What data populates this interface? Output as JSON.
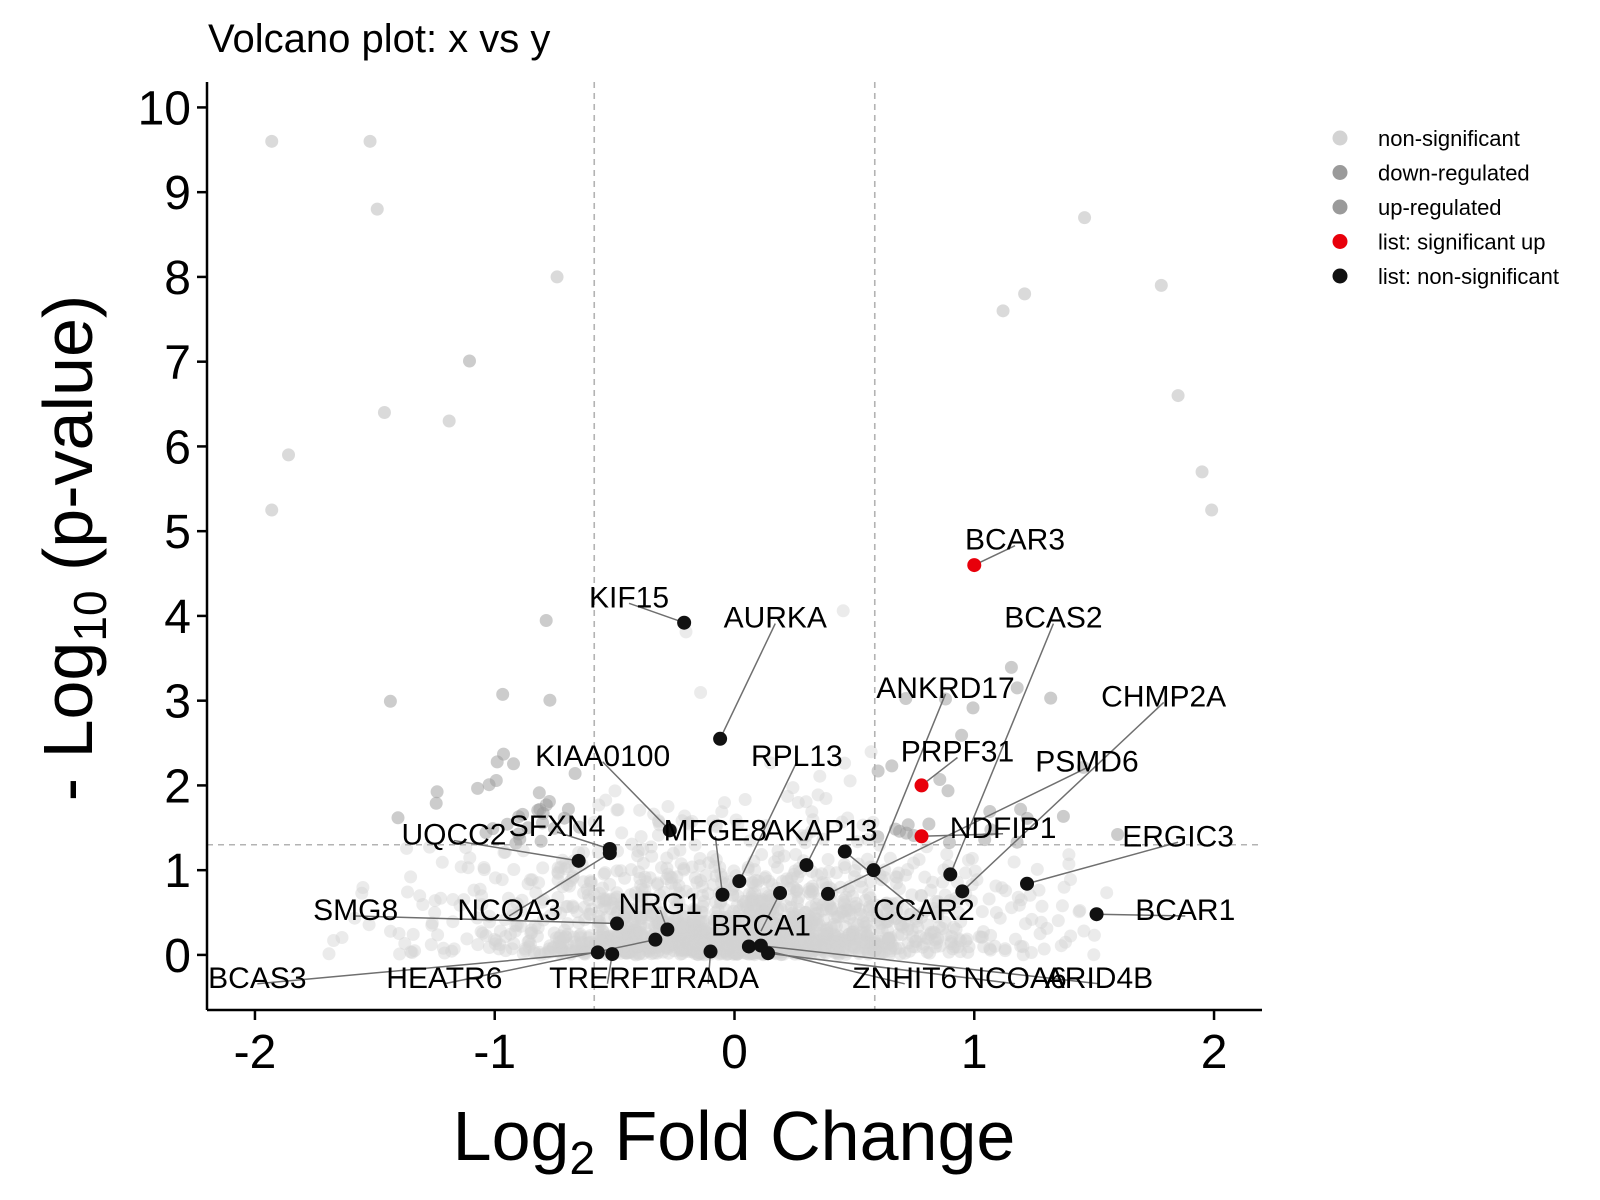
{
  "chart_data": {
    "type": "scatter",
    "title": "Volcano plot: x vs y",
    "xlabel": {
      "base": "Log",
      "sub": "2",
      "rest": " Fold Change"
    },
    "ylabel": {
      "base": "- Log",
      "sub": "10",
      "rest": " (p-value)"
    },
    "xlim": [
      -2.2,
      2.2
    ],
    "ylim": [
      -0.65,
      10.3
    ],
    "xticks": [
      -2,
      -1,
      0,
      1,
      2
    ],
    "yticks": [
      0,
      1,
      2,
      3,
      4,
      5,
      6,
      7,
      8,
      9,
      10
    ],
    "thresholds": {
      "fc": [
        -0.585,
        0.585
      ],
      "p": 1.3
    },
    "grid": false,
    "legend_position": "top-right",
    "colors": {
      "non_significant": "#d3d3d3",
      "down_regulated": "#9a9a9a",
      "up_regulated": "#9a9a9a",
      "list_sig_up": "#e8000b",
      "list_non_sig": "#111111",
      "connector": "#6f6f6f",
      "threshold": "#b3b3b3"
    },
    "legend": [
      {
        "label": "non-significant",
        "color": "#d3d3d3"
      },
      {
        "label": "down-regulated",
        "color": "#9a9a9a"
      },
      {
        "label": "up-regulated",
        "color": "#9a9a9a"
      },
      {
        "label": "list: significant up",
        "color": "#e8000b"
      },
      {
        "label": "list: non-significant",
        "color": "#111111"
      }
    ],
    "labeled_points": [
      {
        "gene": "BCAR3",
        "x": 1.0,
        "y": 4.6,
        "group": "sig_up",
        "lx": 1.17,
        "ly": 4.9
      },
      {
        "gene": "PRPF31",
        "x": 0.78,
        "y": 2.0,
        "group": "sig_up",
        "lx": 0.93,
        "ly": 2.4
      },
      {
        "gene": "NDFIP1",
        "x": 0.78,
        "y": 1.4,
        "group": "sig_up",
        "lx": 1.12,
        "ly": 1.5
      },
      {
        "gene": "KIF15",
        "x": -0.21,
        "y": 3.92,
        "group": "non_sig",
        "lx": -0.44,
        "ly": 4.22
      },
      {
        "gene": "AURKA",
        "x": -0.06,
        "y": 2.55,
        "group": "non_sig",
        "lx": 0.17,
        "ly": 3.98
      },
      {
        "gene": "BCAS2",
        "x": 0.9,
        "y": 0.95,
        "group": "non_sig",
        "lx": 1.33,
        "ly": 3.98
      },
      {
        "gene": "ANKRD17",
        "x": 0.58,
        "y": 1.0,
        "group": "non_sig",
        "lx": 0.88,
        "ly": 3.15
      },
      {
        "gene": "CHMP2A",
        "x": 0.95,
        "y": 0.75,
        "group": "non_sig",
        "lx": 1.79,
        "ly": 3.05
      },
      {
        "gene": "KIAA0100",
        "x": -0.27,
        "y": 1.47,
        "group": "non_sig",
        "lx": -0.55,
        "ly": 2.35
      },
      {
        "gene": "RPL13",
        "x": 0.02,
        "y": 0.87,
        "group": "non_sig",
        "lx": 0.26,
        "ly": 2.35
      },
      {
        "gene": "PSMD6",
        "x": 0.39,
        "y": 0.72,
        "group": "non_sig",
        "lx": 1.47,
        "ly": 2.28
      },
      {
        "gene": "UQCC2",
        "x": -0.65,
        "y": 1.11,
        "group": "non_sig",
        "lx": -1.17,
        "ly": 1.42
      },
      {
        "gene": "SFXN4",
        "x": -0.52,
        "y": 1.25,
        "group": "non_sig",
        "lx": -0.74,
        "ly": 1.52
      },
      {
        "gene": "MFGE8",
        "x": -0.05,
        "y": 0.71,
        "group": "non_sig",
        "lx": -0.08,
        "ly": 1.47
      },
      {
        "gene": "AKAP13",
        "x": 0.3,
        "y": 1.06,
        "group": "non_sig",
        "lx": 0.36,
        "ly": 1.47
      },
      {
        "gene": "ERGIC3",
        "x": 1.22,
        "y": 0.84,
        "group": "non_sig",
        "lx": 1.85,
        "ly": 1.4
      },
      {
        "gene": "SMG8",
        "x": -0.49,
        "y": 0.37,
        "group": "non_sig",
        "lx": -1.58,
        "ly": 0.53
      },
      {
        "gene": "NCOA3",
        "x": -0.52,
        "y": 1.2,
        "group": "non_sig",
        "lx": -0.94,
        "ly": 0.53
      },
      {
        "gene": "NRG1",
        "x": -0.28,
        "y": 0.3,
        "group": "non_sig",
        "lx": -0.31,
        "ly": 0.6
      },
      {
        "gene": "CCAR2",
        "x": 0.46,
        "y": 1.22,
        "group": "non_sig",
        "lx": 0.79,
        "ly": 0.53
      },
      {
        "gene": "BCAR1",
        "x": 1.51,
        "y": 0.48,
        "group": "non_sig",
        "lx": 1.88,
        "ly": 0.53
      },
      {
        "gene": "BRCA1",
        "x": 0.19,
        "y": 0.73,
        "group": "non_sig",
        "lx": 0.11,
        "ly": 0.35
      },
      {
        "gene": "BCAS3",
        "x": -0.57,
        "y": 0.03,
        "group": "non_sig",
        "lx": -1.99,
        "ly": -0.27
      },
      {
        "gene": "HEATR6",
        "x": -0.33,
        "y": 0.18,
        "group": "non_sig",
        "lx": -1.21,
        "ly": -0.27
      },
      {
        "gene": "TRERF1",
        "x": -0.51,
        "y": 0.01,
        "group": "non_sig",
        "lx": -0.53,
        "ly": -0.27
      },
      {
        "gene": "TRADA",
        "x": -0.1,
        "y": 0.04,
        "group": "non_sig",
        "lx": -0.11,
        "ly": -0.27
      },
      {
        "gene": "ZNHIT6",
        "x": 0.06,
        "y": 0.1,
        "group": "non_sig",
        "lx": 0.71,
        "ly": -0.27
      },
      {
        "gene": "NCOA6",
        "x": 0.14,
        "y": 0.02,
        "group": "non_sig",
        "lx": 1.17,
        "ly": -0.27
      },
      {
        "gene": "ARID4B",
        "x": 0.11,
        "y": 0.11,
        "group": "non_sig",
        "lx": 1.52,
        "ly": -0.27
      }
    ],
    "notable_background_points": [
      {
        "x": -1.93,
        "y": 9.6
      },
      {
        "x": -1.52,
        "y": 9.6
      },
      {
        "x": -1.49,
        "y": 8.8
      },
      {
        "x": -0.74,
        "y": 8.0
      },
      {
        "x": -1.19,
        "y": 6.3
      },
      {
        "x": -1.46,
        "y": 6.4
      },
      {
        "x": 1.46,
        "y": 8.7
      },
      {
        "x": 1.78,
        "y": 7.9
      },
      {
        "x": 1.21,
        "y": 7.8
      },
      {
        "x": 1.12,
        "y": 7.6
      },
      {
        "x": 1.85,
        "y": 6.6
      },
      {
        "x": 1.95,
        "y": 5.7
      },
      {
        "x": -1.93,
        "y": 5.25
      },
      {
        "x": -1.86,
        "y": 5.9
      },
      {
        "x": 1.99,
        "y": 5.25
      }
    ]
  }
}
